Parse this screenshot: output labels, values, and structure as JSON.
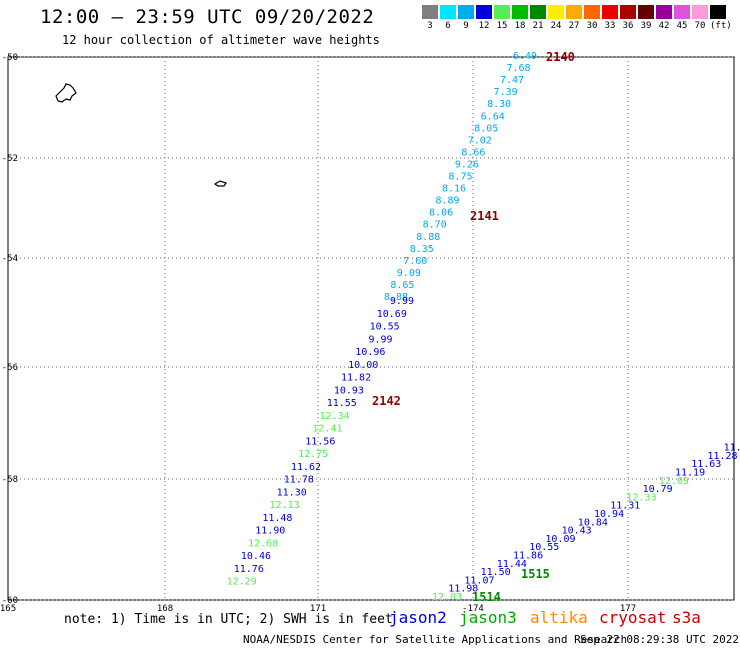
{
  "header": {
    "title": "12:00 – 23:59 UTC 09/20/2022",
    "subtitle": "12 hour collection of altimeter wave heights"
  },
  "legend": {
    "colors": [
      "#7f7f7f",
      "#00e5ff",
      "#00aaee",
      "#0000dd",
      "#55ee55",
      "#00bb00",
      "#008800",
      "#ffee00",
      "#ffaa00",
      "#ff6600",
      "#ee0000",
      "#aa0000",
      "#660000",
      "#990099",
      "#dd55dd",
      "#ff99dd",
      "#000000"
    ],
    "labels": [
      "3",
      "6",
      "9",
      "12",
      "15",
      "18",
      "21",
      "24",
      "27",
      "30",
      "33",
      "36",
      "39",
      "42",
      "45",
      "70",
      "(ft)"
    ]
  },
  "axes": {
    "lat_labels": [
      "-50",
      "-52",
      "-54",
      "-56",
      "-58",
      "-60"
    ],
    "lon_labels": [
      "165",
      "168",
      "171",
      "-174",
      "177"
    ]
  },
  "tracks": {
    "cyan_values": [
      "6.49",
      "7.68",
      "7.47",
      "7.39",
      "8.30",
      "6.64",
      "8.05",
      "7.02",
      "8.66",
      "9.26",
      "8.75",
      "8.16",
      "8.89",
      "8.06",
      "8.70",
      "8.88",
      "8.35",
      "7.60",
      "9.09",
      "8.65",
      "8.88"
    ],
    "blue_upper_values": [
      "9.99",
      "10.69",
      "10.55",
      "9.99",
      "10.96",
      "10.00",
      "11.82",
      "10.93",
      "11.55"
    ],
    "green_mid_values": [
      "12.34",
      "12.41"
    ],
    "blue_mid_values": [
      "11.56"
    ],
    "green_mid2_values": [
      "12.75"
    ],
    "blue_lower_values": [
      "11.62",
      "11.78",
      "11.30"
    ],
    "green_lower_values": [
      "12.13"
    ],
    "blue_bottom_values": [
      "11.48",
      "11.90"
    ],
    "green_bottom_values": [
      "12.68"
    ],
    "blue_end_values": [
      "10.46",
      "11.76"
    ],
    "green_end_values": [
      "12.29"
    ],
    "east_values": [
      "12.03",
      "11.98",
      "11.07",
      "11.50",
      "11.44",
      "11.86",
      "10.55",
      "10.09",
      "10.43",
      "10.84",
      "10.94",
      "11.31",
      "12.33",
      "10.79",
      "12.09",
      "11.19",
      "11.63",
      "11.28",
      "11.0"
    ],
    "time_labels": [
      "2140",
      "2141",
      "2142",
      "1515",
      "1514"
    ]
  },
  "footer": {
    "note": "note: 1) Time is in UTC; 2) SWH is in feet",
    "satellites": [
      "jason2",
      "jason3",
      "altika",
      "cryosat",
      "s3a"
    ],
    "satellite_colors": [
      "#0000dd",
      "#00aa00",
      "#ff8800",
      "#cc0000",
      "#cc0000"
    ],
    "credit": "NOAA/NESDIS Center for Satellite Applications and Research",
    "timestamp": "Sep 22 08:29:38 UTC 2022"
  }
}
